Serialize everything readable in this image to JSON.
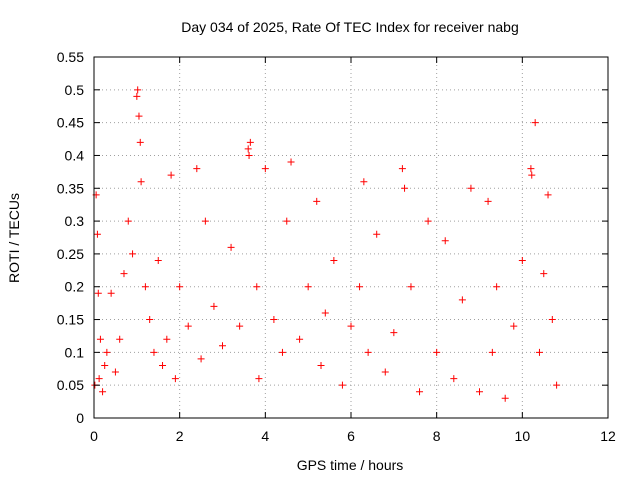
{
  "chart_data": {
    "type": "scatter",
    "title": "Day 034 of 2025, Rate Of TEC Index for receiver nabg",
    "xlabel": "GPS time / hours",
    "ylabel": "ROTI / TECUs",
    "xlim": [
      0,
      12
    ],
    "ylim": [
      0,
      0.55
    ],
    "x_ticks": [
      "0",
      "2",
      "4",
      "6",
      "8",
      "10",
      "12"
    ],
    "y_ticks": [
      "0",
      "0.05",
      "0.1",
      "0.15",
      "0.2",
      "0.25",
      "0.3",
      "0.35",
      "0.4",
      "0.45",
      "0.5",
      "0.55"
    ],
    "grid": true,
    "marker": "plus",
    "color": "#ff0000",
    "series": [
      {
        "x": [
          0.02,
          0.05,
          0.08,
          0.1,
          0.12,
          0.15,
          0.2,
          0.25,
          0.3,
          0.4,
          0.5,
          0.6,
          0.7,
          0.8,
          0.9,
          1.0,
          1.02,
          1.05,
          1.08,
          1.1,
          1.2,
          1.3,
          1.4,
          1.5,
          1.6,
          1.7,
          1.8,
          1.9,
          2.0,
          2.2,
          2.4,
          2.5,
          2.6,
          2.8,
          3.0,
          3.2,
          3.4,
          3.6,
          3.62,
          3.65,
          3.8,
          3.85,
          4.0,
          4.2,
          4.4,
          4.5,
          4.6,
          4.8,
          5.0,
          5.2,
          5.3,
          5.4,
          5.6,
          5.8,
          6.0,
          6.2,
          6.3,
          6.4,
          6.6,
          6.8,
          7.0,
          7.2,
          7.25,
          7.4,
          7.6,
          7.8,
          8.0,
          8.2,
          8.4,
          8.6,
          8.8,
          9.0,
          9.2,
          9.3,
          9.4,
          9.6,
          9.8,
          10.0,
          10.2,
          10.22,
          10.3,
          10.4,
          10.5,
          10.6,
          10.7,
          10.8
        ],
        "y": [
          0.05,
          0.34,
          0.28,
          0.19,
          0.06,
          0.12,
          0.04,
          0.08,
          0.1,
          0.19,
          0.07,
          0.12,
          0.22,
          0.3,
          0.25,
          0.49,
          0.5,
          0.46,
          0.42,
          0.36,
          0.2,
          0.15,
          0.1,
          0.24,
          0.08,
          0.12,
          0.37,
          0.06,
          0.2,
          0.14,
          0.38,
          0.09,
          0.3,
          0.17,
          0.11,
          0.26,
          0.14,
          0.41,
          0.4,
          0.42,
          0.2,
          0.06,
          0.38,
          0.15,
          0.1,
          0.3,
          0.39,
          0.12,
          0.2,
          0.33,
          0.08,
          0.16,
          0.24,
          0.05,
          0.14,
          0.2,
          0.36,
          0.1,
          0.28,
          0.07,
          0.13,
          0.38,
          0.35,
          0.2,
          0.04,
          0.3,
          0.1,
          0.27,
          0.06,
          0.18,
          0.35,
          0.04,
          0.33,
          0.1,
          0.2,
          0.03,
          0.14,
          0.24,
          0.38,
          0.37,
          0.45,
          0.1,
          0.22,
          0.34,
          0.15,
          0.05
        ]
      }
    ]
  }
}
